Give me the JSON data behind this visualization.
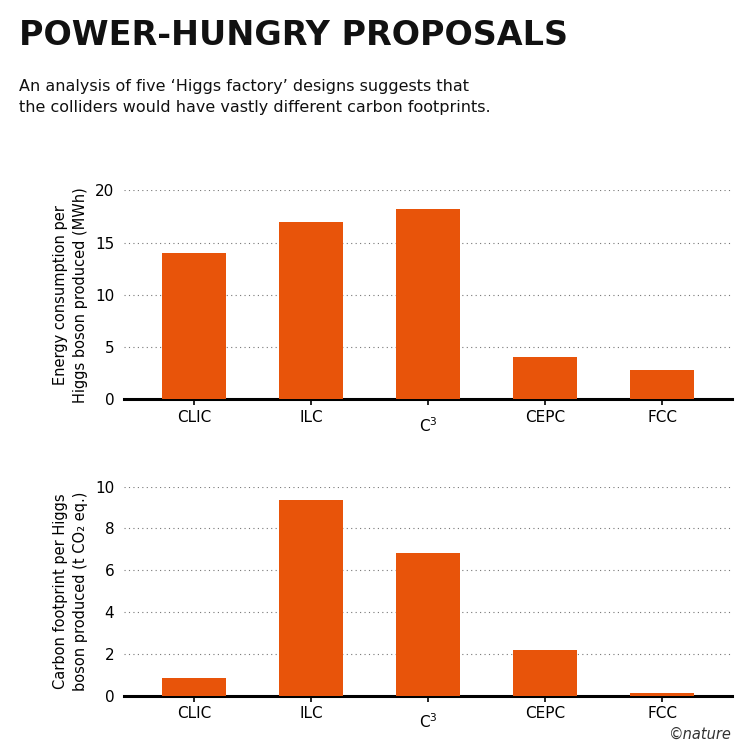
{
  "title": "POWER-HUNGRY PROPOSALS",
  "subtitle": "An analysis of five ‘Higgs factory’ designs suggests that\nthe colliders would have vastly different carbon footprints.",
  "categories": [
    "CLIC",
    "ILC",
    "C$^3$",
    "CEPC",
    "FCC"
  ],
  "categories_plain": [
    "CLIC",
    "ILC",
    "C3",
    "CEPC",
    "FCC"
  ],
  "energy_values": [
    14.0,
    17.0,
    18.2,
    4.1,
    2.8
  ],
  "carbon_values": [
    0.85,
    9.35,
    6.8,
    2.2,
    0.12
  ],
  "bar_color": "#E8540A",
  "ylabel1": "Energy consumption per\nHiggs boson produced (MWh)",
  "ylabel2": "Carbon footprint per Higgs\nboson produced (t CO₂ eq.)",
  "ylim1": [
    0,
    20
  ],
  "ylim2": [
    0,
    10
  ],
  "yticks1": [
    0,
    5,
    10,
    15,
    20
  ],
  "yticks2": [
    0,
    2,
    4,
    6,
    8,
    10
  ],
  "background_color": "#ffffff",
  "grid_color": "#777777",
  "title_fontsize": 24,
  "subtitle_fontsize": 11.5,
  "axis_label_fontsize": 10.5,
  "tick_fontsize": 11,
  "nature_credit": "©nature"
}
